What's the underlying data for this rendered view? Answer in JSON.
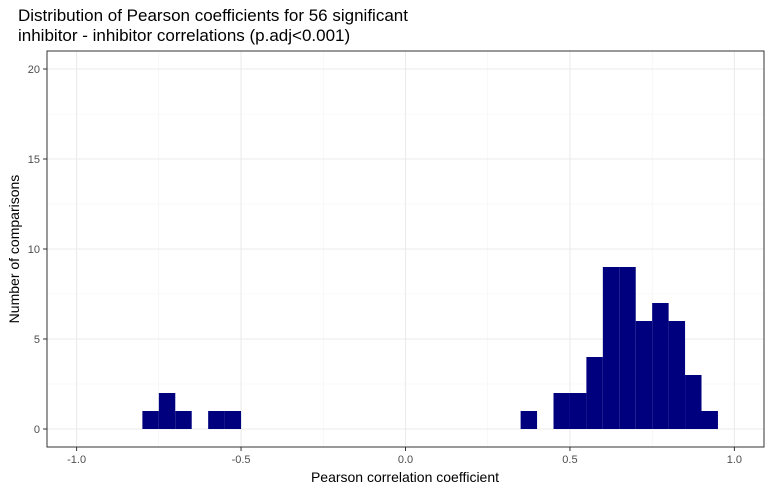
{
  "chart_data": {
    "type": "bar",
    "title_line1": "Distribution of Pearson coefficients for 56 significant",
    "title_line2": "inhibitor - inhibitor correlations (p.adj<0.001)",
    "xlabel": "Pearson correlation coefficient",
    "ylabel": "Number of comparisons",
    "xlim": [
      -1.09,
      1.09
    ],
    "ylim": [
      -1,
      21
    ],
    "x_ticks": [
      "-1.0",
      "-0.5",
      "0.0",
      "0.5",
      "1.0"
    ],
    "y_ticks": [
      "0",
      "5",
      "10",
      "15",
      "20"
    ],
    "bin_width": 0.05,
    "bar_color": "#00007f",
    "grid": true,
    "bins": [
      {
        "center": -0.775,
        "count": 1
      },
      {
        "center": -0.725,
        "count": 2
      },
      {
        "center": -0.675,
        "count": 1
      },
      {
        "center": -0.575,
        "count": 1
      },
      {
        "center": -0.525,
        "count": 1
      },
      {
        "center": 0.375,
        "count": 1
      },
      {
        "center": 0.475,
        "count": 2
      },
      {
        "center": 0.525,
        "count": 2
      },
      {
        "center": 0.575,
        "count": 4
      },
      {
        "center": 0.625,
        "count": 9
      },
      {
        "center": 0.675,
        "count": 9
      },
      {
        "center": 0.725,
        "count": 6
      },
      {
        "center": 0.775,
        "count": 7
      },
      {
        "center": 0.825,
        "count": 6
      },
      {
        "center": 0.875,
        "count": 3
      },
      {
        "center": 0.925,
        "count": 1
      }
    ]
  }
}
